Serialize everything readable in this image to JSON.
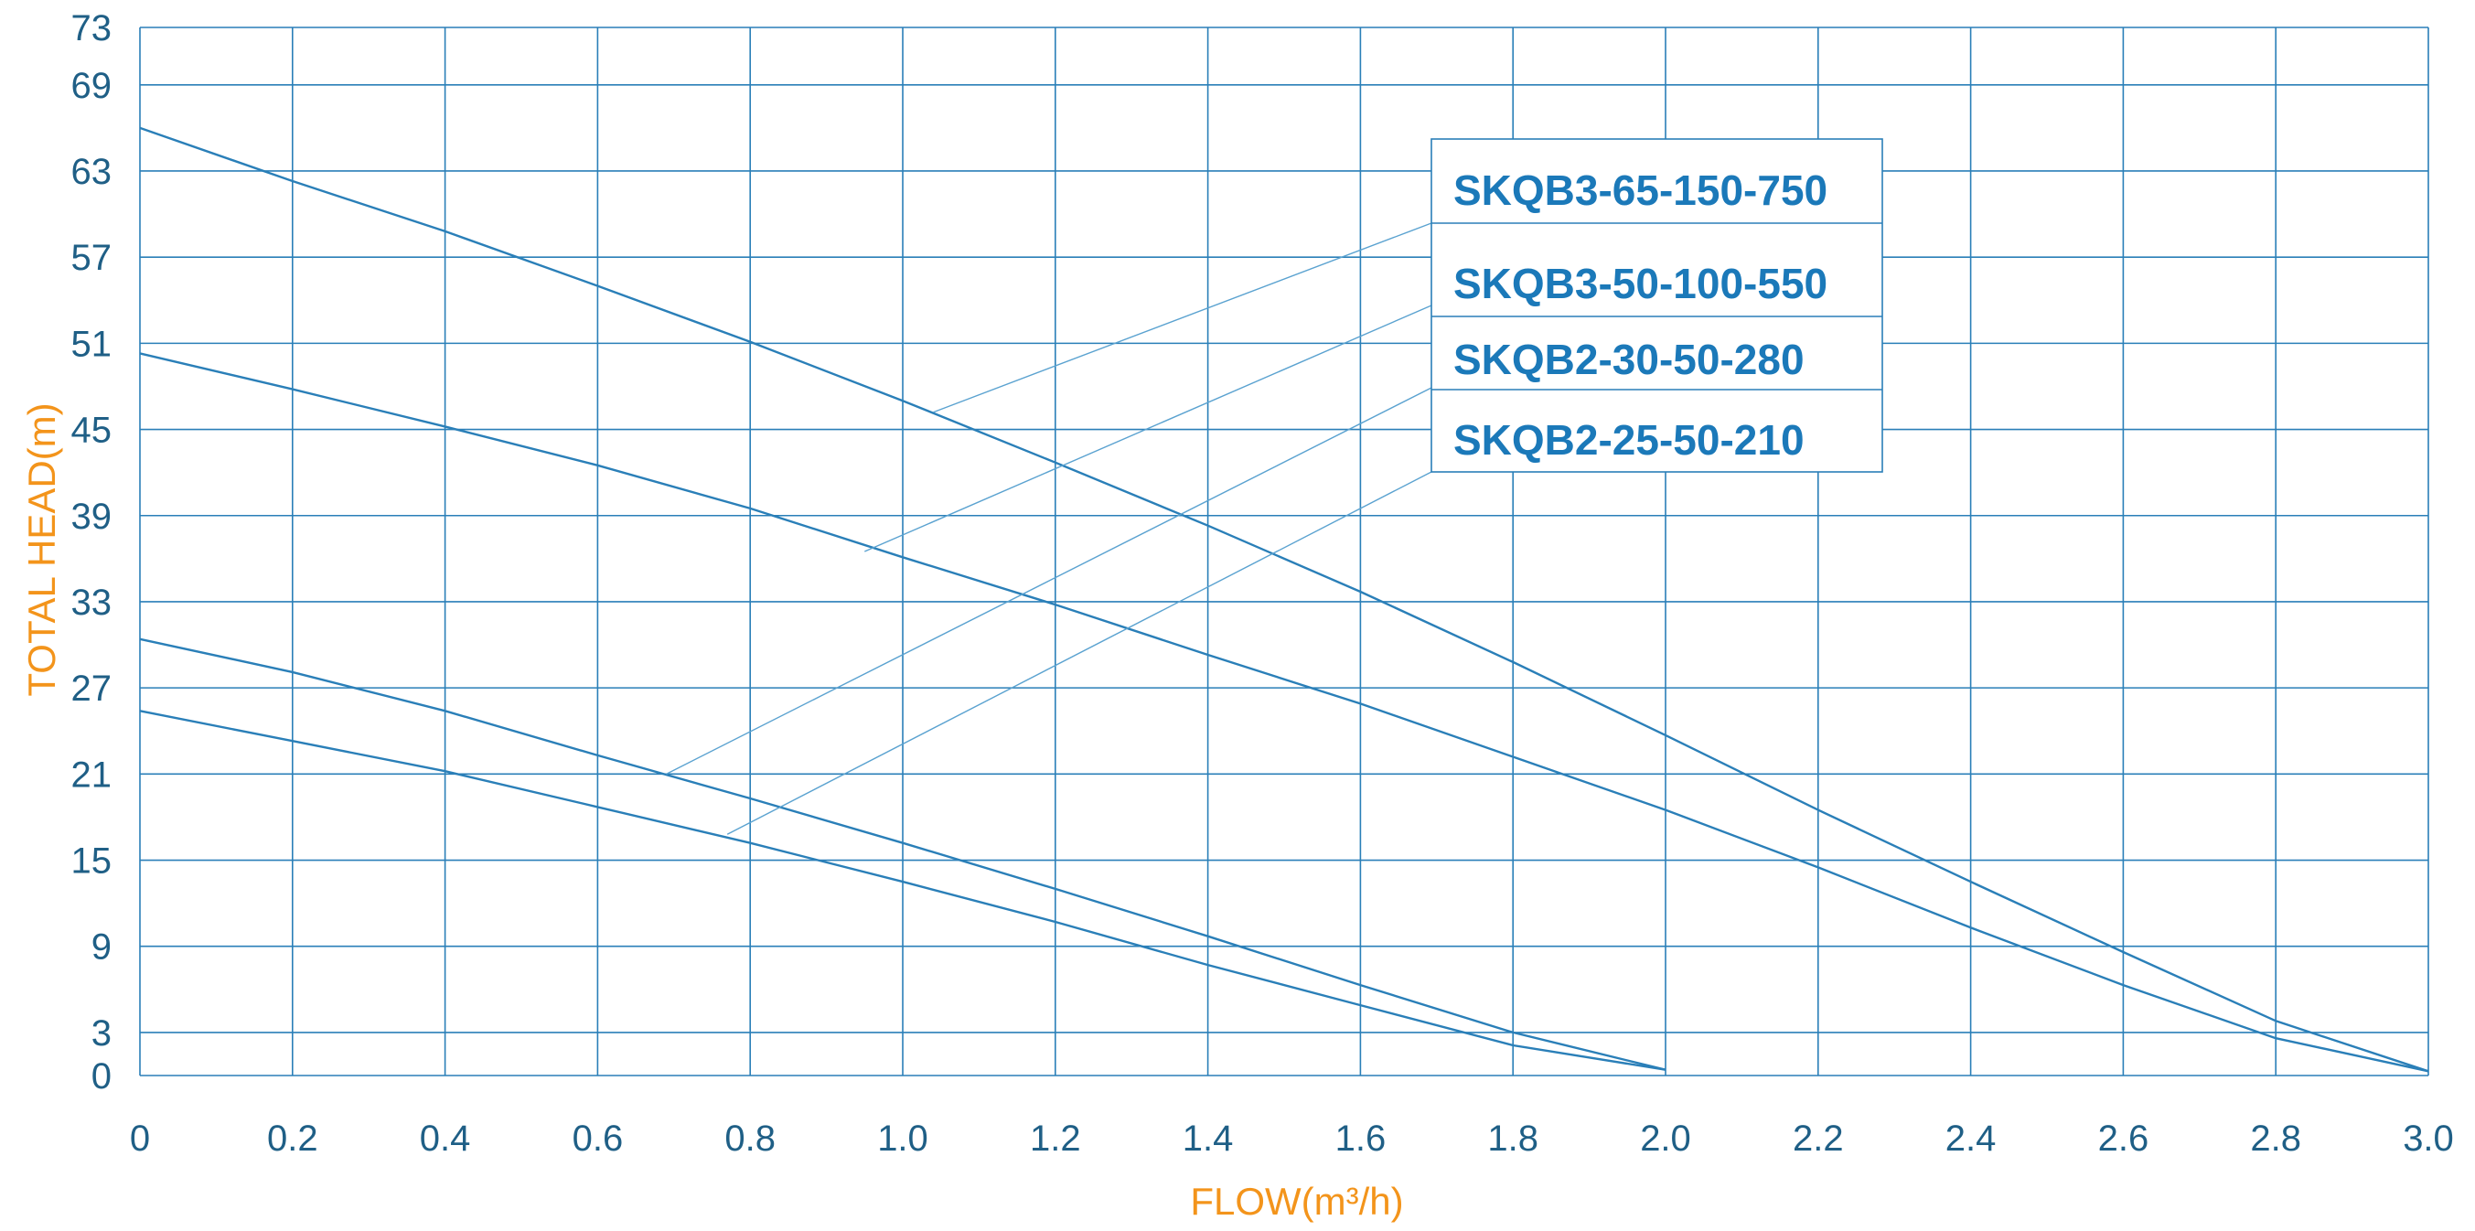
{
  "chart_data": {
    "type": "line",
    "xlabel": "FLOW(m³/h)",
    "ylabel": "TOTAL HEAD(m)",
    "xlim": [
      0,
      3.0
    ],
    "ylim": [
      0,
      73
    ],
    "x_ticks": [
      0,
      0.2,
      0.4,
      0.6,
      0.8,
      1.0,
      1.2,
      1.4,
      1.6,
      1.8,
      2.0,
      2.2,
      2.4,
      2.6,
      2.8,
      3.0
    ],
    "x_tick_labels": [
      "0",
      "0.2",
      "0.4",
      "0.6",
      "0.8",
      "1.0",
      "1.2",
      "1.4",
      "1.6",
      "1.8",
      "2.0",
      "2.2",
      "2.4",
      "2.6",
      "2.8",
      "3.0"
    ],
    "y_ticks": [
      0,
      3,
      9,
      15,
      21,
      27,
      33,
      39,
      45,
      51,
      57,
      63,
      69,
      73
    ],
    "y_tick_labels": [
      "0",
      "3",
      "9",
      "15",
      "21",
      "27",
      "33",
      "39",
      "45",
      "51",
      "57",
      "63",
      "69",
      "73"
    ],
    "grid": true,
    "legend_position": "top-right",
    "series": [
      {
        "name": "SKQB3-65-150-750",
        "x": [
          0,
          0.2,
          0.4,
          0.6,
          0.8,
          1.0,
          1.2,
          1.4,
          1.6,
          1.8,
          2.0,
          2.2,
          2.4,
          2.6,
          2.8,
          3.0
        ],
        "y": [
          66,
          62.3,
          58.8,
          55,
          51.1,
          47,
          42.7,
          38.3,
          33.7,
          28.8,
          23.7,
          18.5,
          13.5,
          8.6,
          3.8,
          0.3
        ],
        "leader_from": [
          1.04,
          46.2
        ]
      },
      {
        "name": "SKQB3-50-100-550",
        "x": [
          0,
          0.2,
          0.4,
          0.6,
          0.8,
          1.0,
          1.2,
          1.4,
          1.6,
          1.8,
          2.0,
          2.2,
          2.4,
          2.6,
          2.8,
          3.0
        ],
        "y": [
          50.3,
          47.8,
          45.2,
          42.5,
          39.5,
          36.1,
          32.8,
          29.3,
          25.9,
          22.2,
          18.5,
          14.5,
          10.3,
          6.3,
          2.6,
          0.3
        ],
        "leader_from": [
          0.95,
          36.5
        ]
      },
      {
        "name": "SKQB2-30-50-280",
        "x": [
          0,
          0.2,
          0.4,
          0.6,
          0.8,
          1.0,
          1.2,
          1.4,
          1.6,
          1.8,
          2.0
        ],
        "y": [
          30.4,
          28.1,
          25.4,
          22.3,
          19.3,
          16.2,
          13.0,
          9.7,
          6.3,
          3.0,
          0.4
        ],
        "leader_from": [
          0.69,
          21
        ]
      },
      {
        "name": "SKQB2-25-50-210",
        "x": [
          0,
          0.2,
          0.4,
          0.6,
          0.8,
          1.0,
          1.2,
          1.4,
          1.6,
          1.8,
          2.0
        ],
        "y": [
          25.4,
          23.3,
          21.2,
          18.7,
          16.2,
          13.5,
          10.7,
          7.7,
          4.9,
          2.1,
          0.4
        ],
        "leader_from": [
          0.77,
          16.8
        ]
      }
    ]
  }
}
